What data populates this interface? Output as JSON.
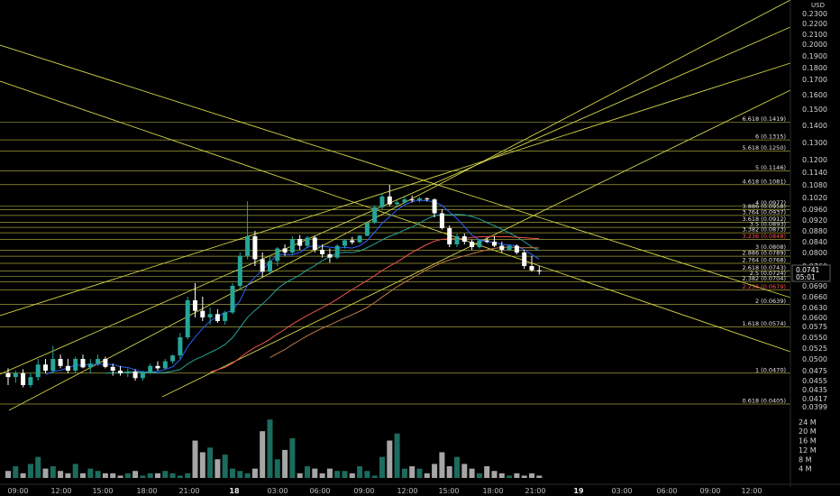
{
  "currency": "USD",
  "price_axis": {
    "ticks": [
      "0.2300",
      "0.2200",
      "0.2100",
      "0.2000",
      "0.1900",
      "0.1800",
      "0.1700",
      "0.1600",
      "0.1500",
      "0.1400",
      "0.1300",
      "0.1200",
      "0.1140",
      "0.1080",
      "0.1020",
      "0.0960",
      "0.0920",
      "0.0880",
      "0.0840",
      "0.0800",
      "0.0760",
      "0.0690",
      "0.0660",
      "0.0630",
      "0.0600",
      "0.0575",
      "0.0550",
      "0.0525",
      "0.0500",
      "0.0475",
      "0.0455",
      "0.0435",
      "0.0417",
      "0.0399"
    ],
    "current_price": "0.0741",
    "countdown": "05:01"
  },
  "volume_axis": {
    "ticks": [
      "24 M",
      "20 M",
      "16 M",
      "12 M",
      "8 M",
      "4 M"
    ]
  },
  "time_axis": {
    "labels": [
      {
        "text": "09:00",
        "bold": false
      },
      {
        "text": "12:00",
        "bold": false
      },
      {
        "text": "15:00",
        "bold": false
      },
      {
        "text": "18:00",
        "bold": false
      },
      {
        "text": "21:00",
        "bold": false
      },
      {
        "text": "18",
        "bold": true
      },
      {
        "text": "03:00",
        "bold": false
      },
      {
        "text": "06:00",
        "bold": false
      },
      {
        "text": "09:00",
        "bold": false
      },
      {
        "text": "12:00",
        "bold": false
      },
      {
        "text": "15:00",
        "bold": false
      },
      {
        "text": "18:00",
        "bold": false
      },
      {
        "text": "21:00",
        "bold": false
      },
      {
        "text": "19",
        "bold": true
      },
      {
        "text": "03:00",
        "bold": false
      },
      {
        "text": "06:00",
        "bold": false
      },
      {
        "text": "09:00",
        "bold": false
      },
      {
        "text": "12:00",
        "bold": false
      }
    ]
  },
  "fib_levels": [
    {
      "label": "6.618 (0.1419)",
      "color": "#e6e6e6"
    },
    {
      "label": "6 (0.1315)",
      "color": "#e6e6e6"
    },
    {
      "label": "5.618 (0.1250)",
      "color": "#e6e6e6"
    },
    {
      "label": "5 (0.1146)",
      "color": "#e6e6e6"
    },
    {
      "label": "4.618 (0.1081)",
      "color": "#e6e6e6"
    },
    {
      "label": "4 (0.0977)",
      "color": "#e6e6e6"
    },
    {
      "label": "3.886 (0.0958)",
      "color": "#e6e6e6"
    },
    {
      "label": "3.764 (0.0937)",
      "color": "#e6e6e6"
    },
    {
      "label": "3.618 (0.0912)",
      "color": "#e6e6e6"
    },
    {
      "label": "3.5 (0.0893)",
      "color": "#e6e6e6"
    },
    {
      "label": "3.382 (0.0873)",
      "color": "#e6e6e6"
    },
    {
      "label": "3.236 (0.0848)",
      "color": "#ff5252"
    },
    {
      "label": "3 (0.0808)",
      "color": "#e6e6e6"
    },
    {
      "label": "2.886 (0.0789)",
      "color": "#e6e6e6"
    },
    {
      "label": "2.764 (0.0768)",
      "color": "#e6e6e6"
    },
    {
      "label": "2.618 (0.0743)",
      "color": "#e6e6e6"
    },
    {
      "label": "2.5 (0.0724)",
      "color": "#e6e6e6"
    },
    {
      "label": "2.382 (0.0704)",
      "color": "#e6e6e6"
    },
    {
      "label": "2.236 (0.0679)",
      "color": "#ff5252"
    },
    {
      "label": "2 (0.0639)",
      "color": "#e6e6e6"
    },
    {
      "label": "1.618 (0.0574)",
      "color": "#e6e6e6"
    },
    {
      "label": "1 (0.0470)",
      "color": "#e6e6e6"
    },
    {
      "label": "0.618 (0.0405)",
      "color": "#e6e6e6"
    }
  ],
  "colors": {
    "background": "#000000",
    "up": "#26a69a",
    "down": "#ffffff",
    "fib_line": "#9e9e3a",
    "trend_line": "#d6d64a",
    "ma_blue": "#2962ff",
    "ma_teal": "#26a69a",
    "ma_red": "#ef5350",
    "ma_orange": "#c07b45",
    "volume_up": "#1b6b5e",
    "volume_down": "#a6a6a6"
  },
  "chart_data": {
    "type": "candlestick",
    "symbol_currency": "USD",
    "current_price": 0.0741,
    "fib_values": [
      0.1419,
      0.1315,
      0.125,
      0.1146,
      0.1081,
      0.0977,
      0.0958,
      0.0937,
      0.0912,
      0.0893,
      0.0873,
      0.0848,
      0.0808,
      0.0789,
      0.0768,
      0.0743,
      0.0724,
      0.0704,
      0.0679,
      0.0639,
      0.0574,
      0.047,
      0.0405
    ],
    "candles": [
      [
        0.047,
        0.048,
        0.0445,
        0.0462
      ],
      [
        0.0462,
        0.0475,
        0.045,
        0.047
      ],
      [
        0.047,
        0.0478,
        0.044,
        0.0445
      ],
      [
        0.0445,
        0.047,
        0.044,
        0.0462
      ],
      [
        0.0462,
        0.05,
        0.0455,
        0.0488
      ],
      [
        0.0488,
        0.05,
        0.047,
        0.0475
      ],
      [
        0.0475,
        0.053,
        0.047,
        0.05
      ],
      [
        0.05,
        0.051,
        0.048,
        0.0485
      ],
      [
        0.0485,
        0.05,
        0.047,
        0.0475
      ],
      [
        0.0475,
        0.0505,
        0.047,
        0.05
      ],
      [
        0.05,
        0.051,
        0.048,
        0.0482
      ],
      [
        0.0482,
        0.05,
        0.047,
        0.049
      ],
      [
        0.049,
        0.051,
        0.0485,
        0.05
      ],
      [
        0.05,
        0.0505,
        0.048,
        0.0483
      ],
      [
        0.0483,
        0.049,
        0.0465,
        0.0475
      ],
      [
        0.0475,
        0.0485,
        0.0465,
        0.047
      ],
      [
        0.047,
        0.048,
        0.0462,
        0.0473
      ],
      [
        0.0473,
        0.0478,
        0.0455,
        0.046
      ],
      [
        0.046,
        0.0475,
        0.0455,
        0.0472
      ],
      [
        0.0472,
        0.049,
        0.0468,
        0.0485
      ],
      [
        0.0485,
        0.0495,
        0.0475,
        0.048
      ],
      [
        0.048,
        0.05,
        0.0478,
        0.0495
      ],
      [
        0.0495,
        0.051,
        0.049,
        0.0508
      ],
      [
        0.0508,
        0.056,
        0.05,
        0.055
      ],
      [
        0.055,
        0.066,
        0.0545,
        0.065
      ],
      [
        0.065,
        0.07,
        0.06,
        0.062
      ],
      [
        0.062,
        0.066,
        0.059,
        0.06
      ],
      [
        0.06,
        0.063,
        0.058,
        0.061
      ],
      [
        0.061,
        0.0625,
        0.0585,
        0.059
      ],
      [
        0.059,
        0.062,
        0.058,
        0.0615
      ],
      [
        0.0615,
        0.07,
        0.061,
        0.069
      ],
      [
        0.069,
        0.08,
        0.068,
        0.079
      ],
      [
        0.079,
        0.1,
        0.078,
        0.086
      ],
      [
        0.086,
        0.088,
        0.076,
        0.078
      ],
      [
        0.078,
        0.08,
        0.072,
        0.074
      ],
      [
        0.074,
        0.079,
        0.073,
        0.0775
      ],
      [
        0.0775,
        0.082,
        0.076,
        0.0815
      ],
      [
        0.0815,
        0.083,
        0.079,
        0.08
      ],
      [
        0.08,
        0.086,
        0.0795,
        0.085
      ],
      [
        0.085,
        0.0865,
        0.081,
        0.0825
      ],
      [
        0.0825,
        0.086,
        0.0815,
        0.0855
      ],
      [
        0.0855,
        0.0862,
        0.08,
        0.081
      ],
      [
        0.081,
        0.083,
        0.0785,
        0.0795
      ],
      [
        0.0795,
        0.0815,
        0.077,
        0.0785
      ],
      [
        0.0785,
        0.083,
        0.078,
        0.0825
      ],
      [
        0.0825,
        0.085,
        0.0815,
        0.0845
      ],
      [
        0.0845,
        0.0858,
        0.083,
        0.0838
      ],
      [
        0.0838,
        0.0865,
        0.0835,
        0.0862
      ],
      [
        0.0862,
        0.0915,
        0.086,
        0.091
      ],
      [
        0.091,
        0.098,
        0.0905,
        0.097
      ],
      [
        0.097,
        0.104,
        0.096,
        0.1025
      ],
      [
        0.1025,
        0.108,
        0.0975,
        0.0985
      ],
      [
        0.0985,
        0.1005,
        0.097,
        0.0995
      ],
      [
        0.0995,
        0.1025,
        0.099,
        0.101
      ],
      [
        0.101,
        0.103,
        0.0995,
        0.1005
      ],
      [
        0.1005,
        0.1022,
        0.0995,
        0.1015
      ],
      [
        0.1015,
        0.102,
        0.1,
        0.101
      ],
      [
        0.101,
        0.1015,
        0.093,
        0.0945
      ],
      [
        0.0945,
        0.096,
        0.0885,
        0.089
      ],
      [
        0.089,
        0.09,
        0.082,
        0.083
      ],
      [
        0.083,
        0.087,
        0.082,
        0.086
      ],
      [
        0.086,
        0.087,
        0.083,
        0.084
      ],
      [
        0.084,
        0.0848,
        0.081,
        0.082
      ],
      [
        0.082,
        0.085,
        0.0815,
        0.0845
      ],
      [
        0.0845,
        0.0855,
        0.0835,
        0.084
      ],
      [
        0.084,
        0.086,
        0.082,
        0.0825
      ],
      [
        0.0825,
        0.084,
        0.08,
        0.081
      ],
      [
        0.081,
        0.083,
        0.0805,
        0.0825
      ],
      [
        0.0825,
        0.083,
        0.0795,
        0.08
      ],
      [
        0.08,
        0.081,
        0.075,
        0.076
      ],
      [
        0.076,
        0.079,
        0.074,
        0.0745
      ],
      [
        0.0745,
        0.076,
        0.073,
        0.0741
      ]
    ],
    "volume_millions": [
      3,
      5,
      2,
      6,
      9,
      4,
      5,
      3,
      2,
      6,
      2,
      4,
      3,
      2,
      2,
      1,
      2,
      3,
      1,
      2,
      2,
      3,
      2,
      1,
      2,
      16,
      11,
      13,
      8,
      10,
      4,
      3,
      2,
      4,
      20,
      25,
      8,
      12,
      17,
      2,
      5,
      4,
      2,
      4,
      3,
      3,
      2,
      5,
      3,
      1,
      9,
      16,
      19,
      4,
      5,
      4,
      2,
      6,
      11,
      5,
      9,
      6,
      4,
      2,
      5,
      3,
      2,
      1,
      2,
      1,
      2,
      1
    ],
    "xlabel": "",
    "ylabel": "USD"
  }
}
